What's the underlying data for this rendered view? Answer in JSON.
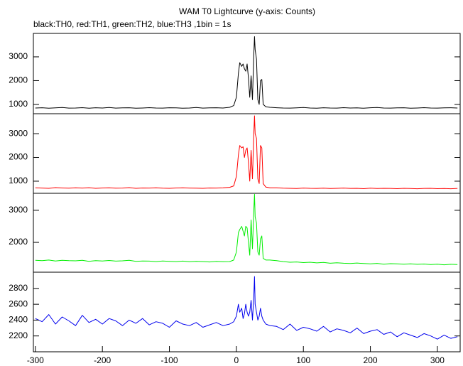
{
  "chart_data": [
    {
      "type": "line",
      "title": "WAM T0 Lightcurve (y-axis: Counts)",
      "subtitle": "black:TH0, red:TH1, green:TH2, blue:TH3 ,1bin = 1s",
      "color": "#000000",
      "x": [
        -300,
        -290,
        -280,
        -270,
        -260,
        -250,
        -240,
        -230,
        -220,
        -210,
        -200,
        -190,
        -180,
        -170,
        -160,
        -150,
        -140,
        -130,
        -120,
        -110,
        -100,
        -90,
        -80,
        -70,
        -60,
        -50,
        -40,
        -30,
        -20,
        -10,
        -4,
        0,
        3,
        5,
        8,
        10,
        12,
        14,
        16,
        18,
        20,
        22,
        24,
        26,
        27,
        28,
        30,
        32,
        34,
        36,
        38,
        40,
        44,
        50,
        60,
        70,
        80,
        90,
        100,
        110,
        120,
        130,
        140,
        150,
        160,
        170,
        180,
        190,
        200,
        210,
        220,
        230,
        240,
        250,
        260,
        270,
        280,
        290,
        300,
        310,
        320,
        330
      ],
      "values": [
        850,
        860,
        840,
        855,
        870,
        845,
        850,
        865,
        840,
        860,
        850,
        870,
        845,
        855,
        860,
        840,
        850,
        865,
        850,
        845,
        860,
        855,
        840,
        850,
        870,
        845,
        855,
        860,
        850,
        880,
        950,
        1300,
        2300,
        2750,
        2600,
        2700,
        2500,
        2400,
        2700,
        2100,
        1300,
        2200,
        1200,
        3100,
        3850,
        3300,
        2900,
        1200,
        1000,
        2000,
        2050,
        1000,
        900,
        880,
        860,
        850,
        845,
        855,
        870,
        850,
        840,
        860,
        850,
        845,
        865,
        850,
        855,
        840,
        860,
        870,
        850,
        845,
        855,
        860,
        840,
        850,
        865,
        850,
        845,
        855,
        860,
        850
      ],
      "xlim": [
        -303,
        334
      ],
      "ylim": [
        610,
        3985
      ],
      "yticks": [
        1000,
        2000,
        3000
      ]
    },
    {
      "type": "line",
      "color": "#ff0000",
      "x": [
        -300,
        -290,
        -280,
        -270,
        -260,
        -250,
        -240,
        -230,
        -220,
        -210,
        -200,
        -190,
        -180,
        -170,
        -160,
        -150,
        -140,
        -130,
        -120,
        -110,
        -100,
        -90,
        -80,
        -70,
        -60,
        -50,
        -40,
        -30,
        -20,
        -10,
        -4,
        0,
        3,
        5,
        8,
        10,
        12,
        14,
        16,
        18,
        20,
        22,
        24,
        26,
        27,
        28,
        30,
        32,
        34,
        36,
        38,
        40,
        44,
        50,
        60,
        70,
        80,
        90,
        100,
        110,
        120,
        130,
        140,
        150,
        160,
        170,
        180,
        190,
        200,
        210,
        220,
        230,
        240,
        250,
        260,
        270,
        280,
        290,
        300,
        310,
        320,
        330
      ],
      "values": [
        720,
        710,
        700,
        730,
        715,
        705,
        720,
        710,
        725,
        700,
        715,
        720,
        705,
        710,
        730,
        700,
        715,
        710,
        720,
        705,
        700,
        715,
        720,
        710,
        705,
        700,
        715,
        710,
        720,
        740,
        800,
        1200,
        2100,
        2500,
        2400,
        2450,
        2000,
        2300,
        2400,
        1800,
        1000,
        2300,
        1100,
        3000,
        3750,
        3000,
        2800,
        1100,
        900,
        2500,
        2400,
        900,
        750,
        720,
        720,
        705,
        700,
        690,
        710,
        700,
        695,
        705,
        690,
        700,
        710,
        695,
        700,
        685,
        705,
        690,
        700,
        695,
        685,
        700,
        690,
        680,
        695,
        700,
        685,
        690,
        680,
        695
      ],
      "xlim": [
        -303,
        334
      ],
      "ylim": [
        490,
        3840
      ],
      "yticks": [
        1000,
        2000,
        3000
      ]
    },
    {
      "type": "line",
      "color": "#00ee00",
      "x": [
        -300,
        -290,
        -280,
        -270,
        -260,
        -250,
        -240,
        -230,
        -220,
        -210,
        -200,
        -190,
        -180,
        -170,
        -160,
        -150,
        -140,
        -130,
        -120,
        -110,
        -100,
        -90,
        -80,
        -70,
        -60,
        -50,
        -40,
        -30,
        -20,
        -10,
        -4,
        0,
        3,
        5,
        8,
        10,
        12,
        14,
        16,
        18,
        20,
        22,
        24,
        26,
        27,
        28,
        30,
        32,
        34,
        36,
        38,
        40,
        44,
        50,
        60,
        70,
        80,
        90,
        100,
        110,
        120,
        130,
        140,
        150,
        160,
        170,
        180,
        190,
        200,
        210,
        220,
        230,
        240,
        250,
        260,
        270,
        280,
        290,
        300,
        310,
        320,
        330
      ],
      "values": [
        1440,
        1430,
        1450,
        1420,
        1440,
        1430,
        1425,
        1440,
        1410,
        1430,
        1420,
        1435,
        1415,
        1425,
        1440,
        1410,
        1420,
        1415,
        1400,
        1420,
        1410,
        1400,
        1415,
        1395,
        1410,
        1400,
        1390,
        1405,
        1395,
        1400,
        1450,
        1700,
        2300,
        2400,
        2500,
        2350,
        2200,
        2500,
        2450,
        2000,
        1600,
        2700,
        1800,
        3000,
        3500,
        2800,
        2600,
        1700,
        1600,
        2100,
        2200,
        1500,
        1450,
        1450,
        1430,
        1400,
        1380,
        1390,
        1370,
        1380,
        1360,
        1375,
        1350,
        1365,
        1350,
        1340,
        1355,
        1340,
        1330,
        1345,
        1320,
        1335,
        1330,
        1320,
        1330,
        1315,
        1325,
        1310,
        1320,
        1300,
        1315,
        1310
      ],
      "xlim": [
        -303,
        334
      ],
      "ylim": [
        1070,
        3530
      ],
      "yticks": [
        2000,
        3000
      ]
    },
    {
      "type": "line",
      "color": "#0000ee",
      "x": [
        -300,
        -290,
        -280,
        -270,
        -260,
        -250,
        -240,
        -230,
        -220,
        -210,
        -200,
        -190,
        -180,
        -170,
        -160,
        -150,
        -140,
        -130,
        -120,
        -110,
        -100,
        -90,
        -80,
        -70,
        -60,
        -50,
        -40,
        -30,
        -20,
        -10,
        -4,
        0,
        3,
        5,
        8,
        10,
        12,
        14,
        16,
        18,
        20,
        22,
        24,
        26,
        27,
        28,
        30,
        32,
        34,
        36,
        38,
        40,
        44,
        50,
        60,
        70,
        80,
        90,
        100,
        110,
        120,
        130,
        140,
        150,
        160,
        170,
        180,
        190,
        200,
        210,
        220,
        230,
        240,
        250,
        260,
        270,
        280,
        290,
        300,
        310,
        320,
        330
      ],
      "values": [
        2420,
        2380,
        2470,
        2350,
        2440,
        2390,
        2330,
        2460,
        2370,
        2410,
        2350,
        2420,
        2390,
        2330,
        2400,
        2360,
        2420,
        2340,
        2380,
        2360,
        2310,
        2390,
        2350,
        2330,
        2370,
        2310,
        2340,
        2370,
        2330,
        2350,
        2380,
        2450,
        2600,
        2500,
        2550,
        2420,
        2480,
        2600,
        2500,
        2450,
        2500,
        2650,
        2400,
        2700,
        2950,
        2600,
        2500,
        2400,
        2450,
        2550,
        2450,
        2400,
        2350,
        2330,
        2320,
        2280,
        2350,
        2270,
        2310,
        2290,
        2260,
        2320,
        2250,
        2290,
        2270,
        2240,
        2300,
        2230,
        2260,
        2280,
        2220,
        2250,
        2190,
        2240,
        2210,
        2180,
        2230,
        2200,
        2160,
        2210,
        2170,
        2190
      ],
      "xlim": [
        -303,
        334
      ],
      "ylim": [
        2000,
        3005
      ],
      "yticks": [
        2200,
        2400,
        2600,
        2800
      ],
      "xticks": [
        -300,
        -200,
        -100,
        0,
        100,
        200,
        300
      ]
    }
  ]
}
